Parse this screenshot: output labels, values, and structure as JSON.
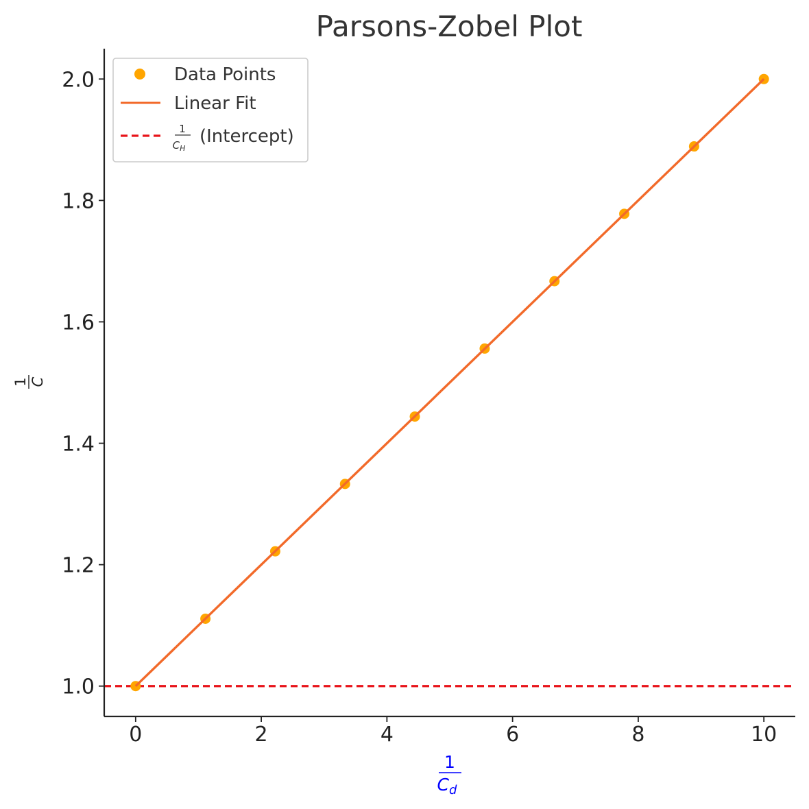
{
  "chart_data": {
    "type": "line",
    "title": "Parsons-Zobel Plot",
    "xlabel": {
      "numerator": "1",
      "base": "C",
      "subscript": "d"
    },
    "ylabel": {
      "numerator": "1",
      "base": "C"
    },
    "xlim": [
      -0.5,
      10.5
    ],
    "ylim": [
      0.95,
      2.05
    ],
    "xticks": [
      0,
      2,
      4,
      6,
      8,
      10
    ],
    "xtick_labels": [
      "0",
      "2",
      "4",
      "6",
      "8",
      "10"
    ],
    "yticks": [
      1.0,
      1.2,
      1.4,
      1.6,
      1.8,
      2.0
    ],
    "ytick_labels": [
      "1.0",
      "1.2",
      "1.4",
      "1.6",
      "1.8",
      "2.0"
    ],
    "grid": false,
    "legend_position": "top-left",
    "series": [
      {
        "name": "Data Points",
        "kind": "scatter",
        "color": "#ffa500",
        "x": [
          0,
          1.111,
          2.222,
          3.333,
          4.444,
          5.556,
          6.667,
          7.778,
          8.889,
          10
        ],
        "y": [
          1.0,
          1.111,
          1.222,
          1.333,
          1.444,
          1.556,
          1.667,
          1.778,
          1.889,
          2.0
        ]
      },
      {
        "name": "Linear Fit",
        "kind": "line",
        "color": "#f26a2a",
        "x": [
          0,
          10
        ],
        "y": [
          1.0,
          2.0
        ]
      },
      {
        "name_fraction": {
          "numerator": "1",
          "base": "C",
          "subscript": "H"
        },
        "name": "(Intercept)",
        "kind": "hline",
        "style": "dashed",
        "color": "#e8141a",
        "y": 1.0
      }
    ]
  }
}
